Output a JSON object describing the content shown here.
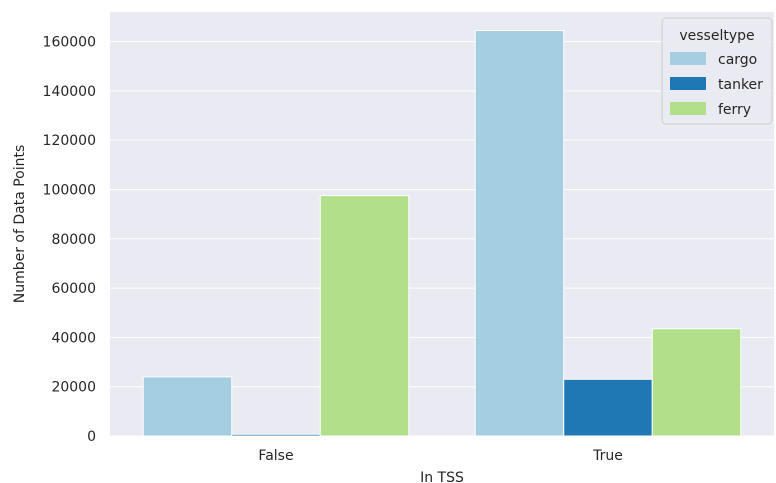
{
  "chart_data": {
    "type": "bar",
    "title": "",
    "xlabel": "In TSS",
    "ylabel": "Number of Data Points",
    "categories": [
      "False",
      "True"
    ],
    "series": [
      {
        "name": "cargo",
        "color": "#a6cee3",
        "values": [
          24000,
          164500
        ]
      },
      {
        "name": "tanker",
        "color": "#1f78b4",
        "values": [
          700,
          23000
        ]
      },
      {
        "name": "ferry",
        "color": "#b2df8a",
        "values": [
          97500,
          43500
        ]
      }
    ],
    "ylim": [
      0,
      172000
    ],
    "yticks": [
      0,
      20000,
      40000,
      60000,
      80000,
      100000,
      120000,
      140000,
      160000
    ],
    "ytick_labels": [
      "0",
      "20000",
      "40000",
      "60000",
      "80000",
      "100000",
      "120000",
      "140000",
      "160000"
    ],
    "grid": true,
    "legend": {
      "title": "vesseltype",
      "placement": "top-right"
    },
    "background_color": "#eaeaf2"
  }
}
